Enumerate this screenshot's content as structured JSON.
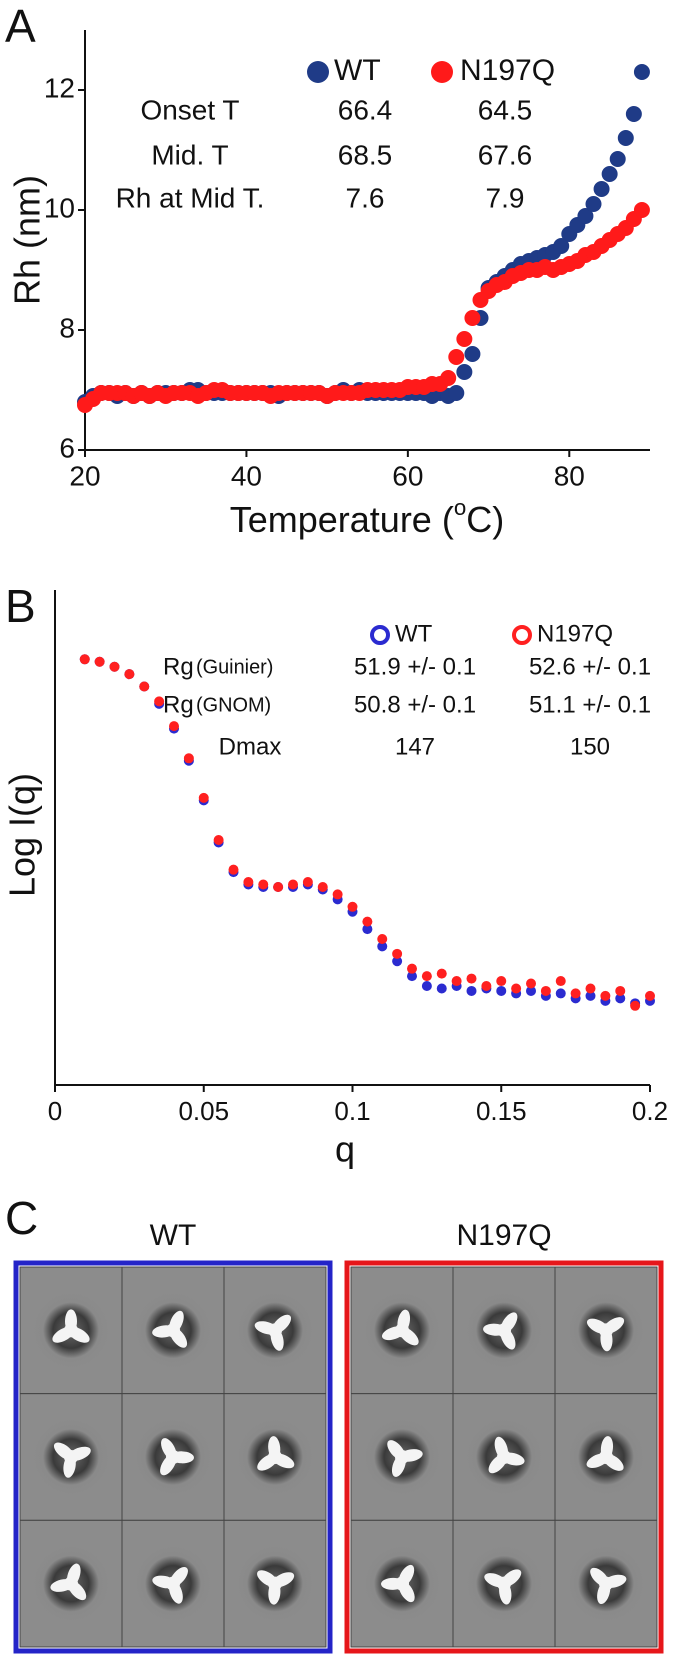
{
  "chart_data": [
    {
      "type": "scatter",
      "panel_label": "A",
      "ylabel": "Rh (nm)",
      "xlabel_parts": [
        "Temperature (",
        "o",
        "C)"
      ],
      "xlim": [
        20,
        90
      ],
      "ylim": [
        6,
        13
      ],
      "xticks": [
        20,
        40,
        60,
        80
      ],
      "yticks": [
        6,
        8,
        10,
        12
      ],
      "marker": "filled",
      "x": [
        20,
        21,
        22,
        23,
        24,
        25,
        26,
        27,
        28,
        29,
        30,
        31,
        32,
        33,
        34,
        35,
        36,
        37,
        38,
        39,
        40,
        41,
        42,
        43,
        44,
        45,
        46,
        47,
        48,
        49,
        50,
        51,
        52,
        53,
        54,
        55,
        56,
        57,
        58,
        59,
        60,
        61,
        62,
        63,
        64,
        65,
        66,
        67,
        68,
        69,
        70,
        71,
        72,
        73,
        74,
        75,
        76,
        77,
        78,
        79,
        80,
        81,
        82,
        83,
        84,
        85,
        86,
        87,
        88,
        89
      ],
      "series": [
        {
          "name": "WT",
          "color": "#1f3b87",
          "values": [
            6.8,
            6.9,
            6.95,
            6.95,
            6.9,
            6.95,
            6.9,
            6.95,
            6.9,
            6.95,
            6.95,
            6.95,
            6.95,
            7.0,
            7.0,
            6.95,
            6.95,
            6.95,
            6.95,
            6.95,
            6.95,
            6.95,
            6.95,
            6.95,
            6.9,
            6.95,
            6.95,
            6.95,
            6.95,
            6.95,
            6.9,
            6.95,
            7.0,
            6.95,
            7.0,
            6.95,
            6.95,
            6.95,
            6.95,
            6.95,
            6.95,
            6.95,
            6.95,
            6.9,
            6.95,
            6.9,
            6.95,
            7.3,
            7.6,
            8.2,
            8.7,
            8.8,
            8.9,
            9.0,
            9.1,
            9.15,
            9.2,
            9.25,
            9.3,
            9.4,
            9.6,
            9.75,
            9.9,
            10.1,
            10.35,
            10.6,
            10.85,
            11.2,
            11.6,
            12.3
          ]
        },
        {
          "name": "N197Q",
          "color": "#ff1a1a",
          "values": [
            6.75,
            6.85,
            6.95,
            6.95,
            6.95,
            6.95,
            6.9,
            6.95,
            6.9,
            6.95,
            6.9,
            6.95,
            6.95,
            6.95,
            6.9,
            6.95,
            7.0,
            7.0,
            6.95,
            6.95,
            6.95,
            6.95,
            6.95,
            6.9,
            6.95,
            6.95,
            6.95,
            6.95,
            6.95,
            6.95,
            6.9,
            6.95,
            6.95,
            6.95,
            6.95,
            7.0,
            7.0,
            7.0,
            7.0,
            7.0,
            7.05,
            7.05,
            7.05,
            7.1,
            7.1,
            7.2,
            7.55,
            7.85,
            8.2,
            8.5,
            8.65,
            8.75,
            8.8,
            8.9,
            8.95,
            9.0,
            9.0,
            9.05,
            9.0,
            9.05,
            9.1,
            9.15,
            9.25,
            9.3,
            9.4,
            9.5,
            9.6,
            9.7,
            9.85,
            10.0
          ]
        }
      ],
      "table": {
        "rows": [
          {
            "label": "Onset T",
            "values": [
              66.4,
              64.5
            ]
          },
          {
            "label": "Mid. T",
            "values": [
              68.5,
              67.6
            ]
          },
          {
            "label": "Rh at Mid T.",
            "values": [
              7.6,
              7.9
            ]
          }
        ]
      }
    },
    {
      "type": "scatter",
      "panel_label": "B",
      "ylabel": "Log I(q)",
      "xlabel": "q",
      "xlim": [
        0,
        0.2
      ],
      "ylim": [
        0,
        100
      ],
      "xticks": [
        0,
        0.05,
        0.1,
        0.15,
        0.2
      ],
      "marker": "open",
      "x": [
        0.01,
        0.015,
        0.02,
        0.025,
        0.03,
        0.035,
        0.04,
        0.045,
        0.05,
        0.055,
        0.06,
        0.065,
        0.07,
        0.075,
        0.08,
        0.085,
        0.09,
        0.095,
        0.1,
        0.105,
        0.11,
        0.115,
        0.12,
        0.125,
        0.13,
        0.135,
        0.14,
        0.145,
        0.15,
        0.155,
        0.16,
        0.165,
        0.17,
        0.175,
        0.18,
        0.185,
        0.19,
        0.195,
        0.2
      ],
      "series": [
        {
          "name": "WT",
          "color": "#2b2bd0",
          "values": [
            86,
            85.5,
            84.5,
            83,
            80.5,
            77,
            72,
            65.5,
            57.5,
            49,
            43,
            40.5,
            40,
            40,
            40,
            40.5,
            39.5,
            37.5,
            35,
            31.5,
            28,
            25,
            22,
            20,
            19.5,
            20,
            19,
            19.5,
            19,
            18.5,
            19,
            18,
            18.5,
            17.5,
            18,
            17,
            17.5,
            16.5,
            17
          ]
        },
        {
          "name": "N197Q",
          "color": "#ff2020",
          "values": [
            86,
            85.5,
            84.5,
            83,
            80.5,
            77.5,
            72.5,
            66,
            58,
            49.5,
            43.5,
            41,
            40.5,
            40,
            40.5,
            41,
            40,
            38.5,
            36,
            33,
            29.5,
            26.5,
            23.5,
            22,
            22.5,
            21,
            21.5,
            20,
            21,
            19.5,
            20.5,
            19,
            21,
            18.5,
            19.5,
            18,
            19,
            16,
            18
          ]
        }
      ],
      "table": {
        "rows": [
          {
            "label": "Rg",
            "method": "(Guinier)",
            "values": [
              "51.9 +/- 0.1",
              "52.6 +/- 0.1"
            ]
          },
          {
            "label": "Rg",
            "method": "(GNOM)",
            "values": [
              "50.8 +/- 0.1",
              "51.1 +/- 0.1"
            ]
          },
          {
            "label": "Dmax",
            "values": [
              147,
              150
            ]
          }
        ]
      }
    }
  ],
  "panel_c": {
    "label": "C",
    "groups": [
      {
        "title": "WT",
        "color": "#2424c8"
      },
      {
        "title": "N197Q",
        "color": "#e6161a"
      }
    ]
  }
}
